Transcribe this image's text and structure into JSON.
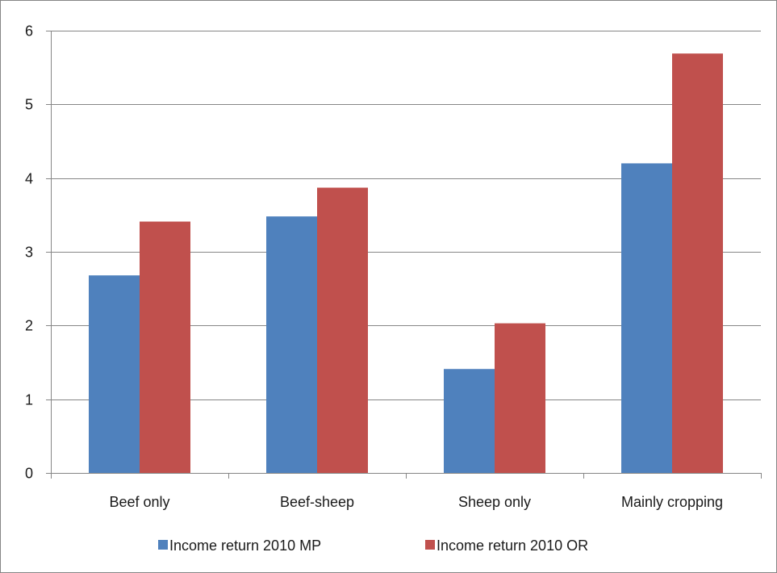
{
  "chart_data": {
    "type": "bar",
    "categories": [
      "Beef only",
      "Beef-sheep",
      "Sheep only",
      "Mainly cropping"
    ],
    "series": [
      {
        "name": "Income return 2010 MP",
        "color": "#4F81BD",
        "values": [
          2.68,
          3.48,
          1.41,
          4.2
        ]
      },
      {
        "name": "Income return 2010 OR",
        "color": "#C0504D",
        "values": [
          3.41,
          3.87,
          2.03,
          5.69
        ]
      }
    ],
    "title": "",
    "xlabel": "",
    "ylabel": "",
    "ylim": [
      0,
      6
    ],
    "yticks": [
      "0",
      "1",
      "2",
      "3",
      "4",
      "5",
      "6"
    ],
    "grid": true,
    "legend_position": "bottom"
  }
}
